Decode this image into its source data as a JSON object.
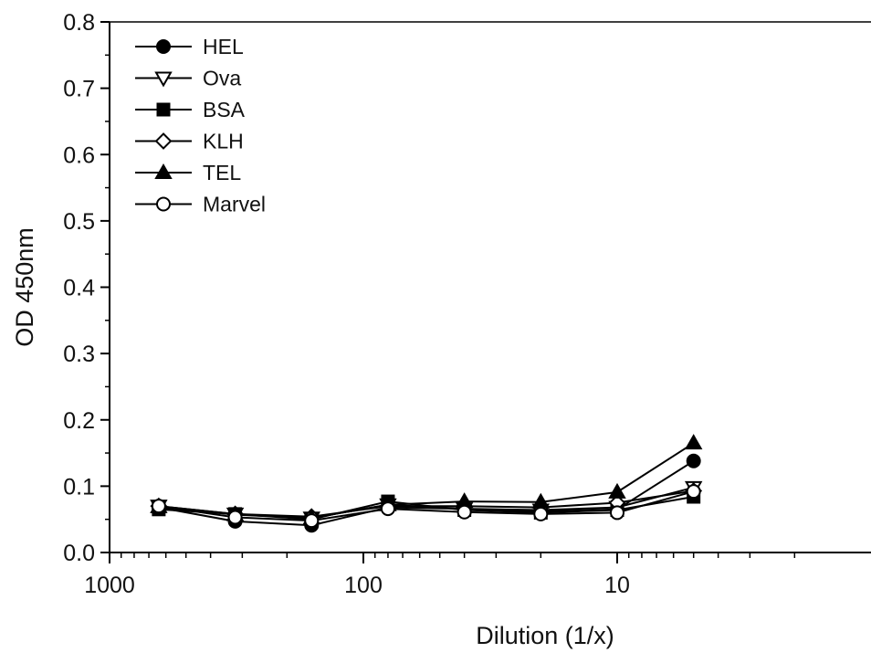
{
  "chart_data": {
    "type": "line",
    "title": "",
    "xlabel": "Dilution (1/x)",
    "ylabel": "OD 450nm",
    "x_scale": "log-reversed",
    "xlim": [
      1000,
      1
    ],
    "ylim": [
      0,
      0.8
    ],
    "y_ticks": [
      0.0,
      0.1,
      0.2,
      0.3,
      0.4,
      0.5,
      0.6,
      0.7,
      0.8
    ],
    "y_tick_labels": [
      "0.0",
      "0.1",
      "0.2",
      "0.3",
      "0.4",
      "0.5",
      "0.6",
      "0.7",
      "0.8"
    ],
    "x_ticks": [
      1000,
      100,
      10
    ],
    "x_tick_labels": [
      "1000",
      "100",
      "10"
    ],
    "grid": false,
    "legend_position": "top-left",
    "x": [
      640,
      320,
      160,
      80,
      40,
      20,
      10,
      5
    ],
    "series": [
      {
        "name": "HEL",
        "marker": "circle-filled",
        "values": [
          0.068,
          0.047,
          0.041,
          0.068,
          0.066,
          0.062,
          0.065,
          0.138
        ]
      },
      {
        "name": "Ova",
        "marker": "triangle-down-open",
        "values": [
          0.07,
          0.058,
          0.052,
          0.072,
          0.066,
          0.064,
          0.068,
          0.098
        ]
      },
      {
        "name": "BSA",
        "marker": "square-filled",
        "values": [
          0.065,
          0.058,
          0.05,
          0.077,
          0.064,
          0.06,
          0.064,
          0.084
        ]
      },
      {
        "name": "KLH",
        "marker": "diamond-open",
        "values": [
          0.07,
          0.058,
          0.054,
          0.07,
          0.07,
          0.068,
          0.075,
          0.093
        ]
      },
      {
        "name": "TEL",
        "marker": "triangle-up-filled",
        "values": [
          0.069,
          0.057,
          0.052,
          0.072,
          0.077,
          0.076,
          0.091,
          0.165
        ]
      },
      {
        "name": "Marvel",
        "marker": "circle-open",
        "values": [
          0.07,
          0.053,
          0.048,
          0.066,
          0.061,
          0.058,
          0.06,
          0.092
        ]
      }
    ]
  }
}
